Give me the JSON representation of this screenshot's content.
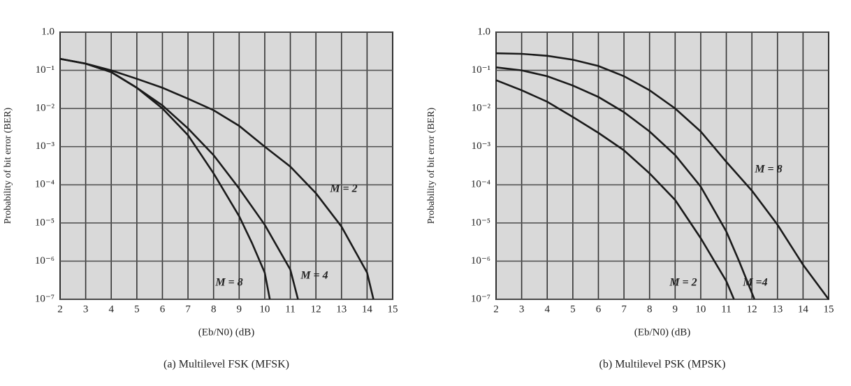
{
  "chart_data": [
    {
      "type": "line",
      "title": "(a) Multilevel FSK (MFSK)",
      "x_label": "(Eb/N0) (dB)",
      "y_label": "Probability of bit error (BER)",
      "yscale": "log",
      "grid": true,
      "plot_background": "#d9d9d9",
      "xlim": [
        2,
        15
      ],
      "xticks": [
        2,
        3,
        4,
        5,
        6,
        7,
        8,
        9,
        10,
        11,
        12,
        13,
        14,
        15
      ],
      "ylim": [
        1e-07,
        1
      ],
      "yticks": [
        {
          "value": 1,
          "label": "1.0"
        },
        {
          "value": 0.1,
          "label": "10⁻¹"
        },
        {
          "value": 0.01,
          "label": "10⁻²"
        },
        {
          "value": 0.001,
          "label": "10⁻³"
        },
        {
          "value": 0.0001,
          "label": "10⁻⁴"
        },
        {
          "value": 1e-05,
          "label": "10⁻⁵"
        },
        {
          "value": 1e-06,
          "label": "10⁻⁶"
        },
        {
          "value": 1e-07,
          "label": "10⁻⁷"
        }
      ],
      "series": [
        {
          "name": "M = 2",
          "color": "#1a1a1a",
          "x": [
            2,
            3,
            4,
            5,
            6,
            7,
            8,
            9,
            10,
            11,
            12,
            13,
            14,
            14.25
          ],
          "values": [
            0.2,
            0.15,
            0.1,
            0.06,
            0.035,
            0.018,
            0.009,
            0.0035,
            0.001,
            0.0003,
            6e-05,
            8e-06,
            5e-07,
            1e-07
          ]
        },
        {
          "name": "M = 4",
          "color": "#1a1a1a",
          "x": [
            2,
            3,
            4,
            5,
            6,
            7,
            8,
            9,
            10,
            11,
            11.3
          ],
          "values": [
            0.2,
            0.15,
            0.09,
            0.035,
            0.012,
            0.003,
            0.0006,
            8e-05,
            9e-06,
            6e-07,
            1e-07
          ]
        },
        {
          "name": "M = 8",
          "color": "#1a1a1a",
          "x": [
            2,
            3,
            4,
            5,
            6,
            7,
            8,
            9,
            9.5,
            10,
            10.2
          ],
          "values": [
            0.2,
            0.15,
            0.09,
            0.035,
            0.01,
            0.002,
            0.0002,
            1.5e-05,
            3e-06,
            5e-07,
            1e-07
          ]
        }
      ]
    },
    {
      "type": "line",
      "title": "(b) Multilevel PSK (MPSK)",
      "x_label": "(Eb/N0) (dB)",
      "y_label": "Probability of bit error (BER)",
      "yscale": "log",
      "grid": true,
      "plot_background": "#d9d9d9",
      "xlim": [
        2,
        15
      ],
      "xticks": [
        2,
        3,
        4,
        5,
        6,
        7,
        8,
        9,
        10,
        11,
        12,
        13,
        14,
        15
      ],
      "ylim": [
        1e-07,
        1
      ],
      "yticks": [
        {
          "value": 1,
          "label": "1.0"
        },
        {
          "value": 0.1,
          "label": "10⁻¹"
        },
        {
          "value": 0.01,
          "label": "10⁻²"
        },
        {
          "value": 0.001,
          "label": "10⁻³"
        },
        {
          "value": 0.0001,
          "label": "10⁻⁴"
        },
        {
          "value": 1e-05,
          "label": "10⁻⁵"
        },
        {
          "value": 1e-06,
          "label": "10⁻⁶"
        },
        {
          "value": 1e-07,
          "label": "10⁻⁷"
        }
      ],
      "series": [
        {
          "name": "M = 8",
          "color": "#1a1a1a",
          "x": [
            2,
            3,
            4,
            5,
            6,
            7,
            8,
            9,
            10,
            11,
            12,
            13,
            14,
            15
          ],
          "values": [
            0.28,
            0.27,
            0.24,
            0.19,
            0.13,
            0.07,
            0.03,
            0.01,
            0.0025,
            0.0004,
            7e-05,
            9e-06,
            8e-07,
            1e-07
          ]
        },
        {
          "name": "M = 2",
          "color": "#1a1a1a",
          "x": [
            2,
            3,
            4,
            5,
            6,
            7,
            8,
            9,
            10,
            11,
            11.3
          ],
          "values": [
            0.055,
            0.03,
            0.015,
            0.006,
            0.0023,
            0.0008,
            0.0002,
            4e-05,
            4e-06,
            3e-07,
            1e-07
          ]
        },
        {
          "name": "M =4",
          "color": "#1a1a1a",
          "x": [
            2,
            3,
            4,
            5,
            6,
            7,
            8,
            9,
            10,
            11,
            11.5,
            12.1
          ],
          "values": [
            0.12,
            0.1,
            0.07,
            0.04,
            0.02,
            0.008,
            0.0025,
            0.0006,
            9e-05,
            6e-06,
            1e-06,
            1e-07
          ]
        }
      ]
    }
  ]
}
